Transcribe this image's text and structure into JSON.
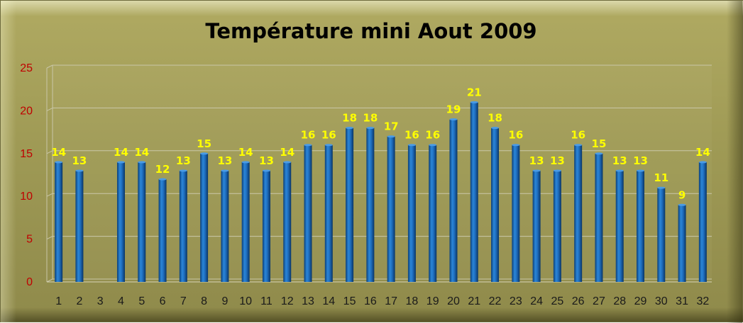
{
  "chart_data": {
    "type": "bar",
    "title": "Température mini Aout 2009",
    "xlabel": "",
    "ylabel": "",
    "ylim": [
      0,
      25
    ],
    "yticks": [
      0,
      5,
      10,
      15,
      20,
      25
    ],
    "categories": [
      "1",
      "2",
      "3",
      "4",
      "5",
      "6",
      "7",
      "8",
      "9",
      "10",
      "11",
      "12",
      "13",
      "14",
      "15",
      "16",
      "17",
      "18",
      "19",
      "20",
      "21",
      "22",
      "23",
      "24",
      "25",
      "26",
      "27",
      "28",
      "29",
      "30",
      "31",
      "32"
    ],
    "values": [
      14,
      13,
      null,
      14,
      14,
      12,
      13,
      15,
      13,
      14,
      13,
      14,
      16,
      16,
      18,
      18,
      17,
      16,
      16,
      19,
      21,
      18,
      16,
      13,
      13,
      16,
      15,
      13,
      13,
      11,
      9,
      14
    ],
    "data_labels": [
      "14",
      "13",
      "",
      "14",
      "14",
      "12",
      "13",
      "15",
      "13",
      "14",
      "13",
      "14",
      "16",
      "16",
      "18",
      "18",
      "17",
      "16",
      "16",
      "19",
      "21",
      "18",
      "16",
      "13",
      "13",
      "16",
      "15",
      "13",
      "13",
      "11",
      "9",
      "14"
    ],
    "grid": true,
    "legend": "none",
    "colors": {
      "bar": "#1f6fc0",
      "bar_dark": "#0b3f78",
      "data_label": "#ffff00",
      "ytick": "#c00000",
      "background": "#a6a05a"
    }
  }
}
